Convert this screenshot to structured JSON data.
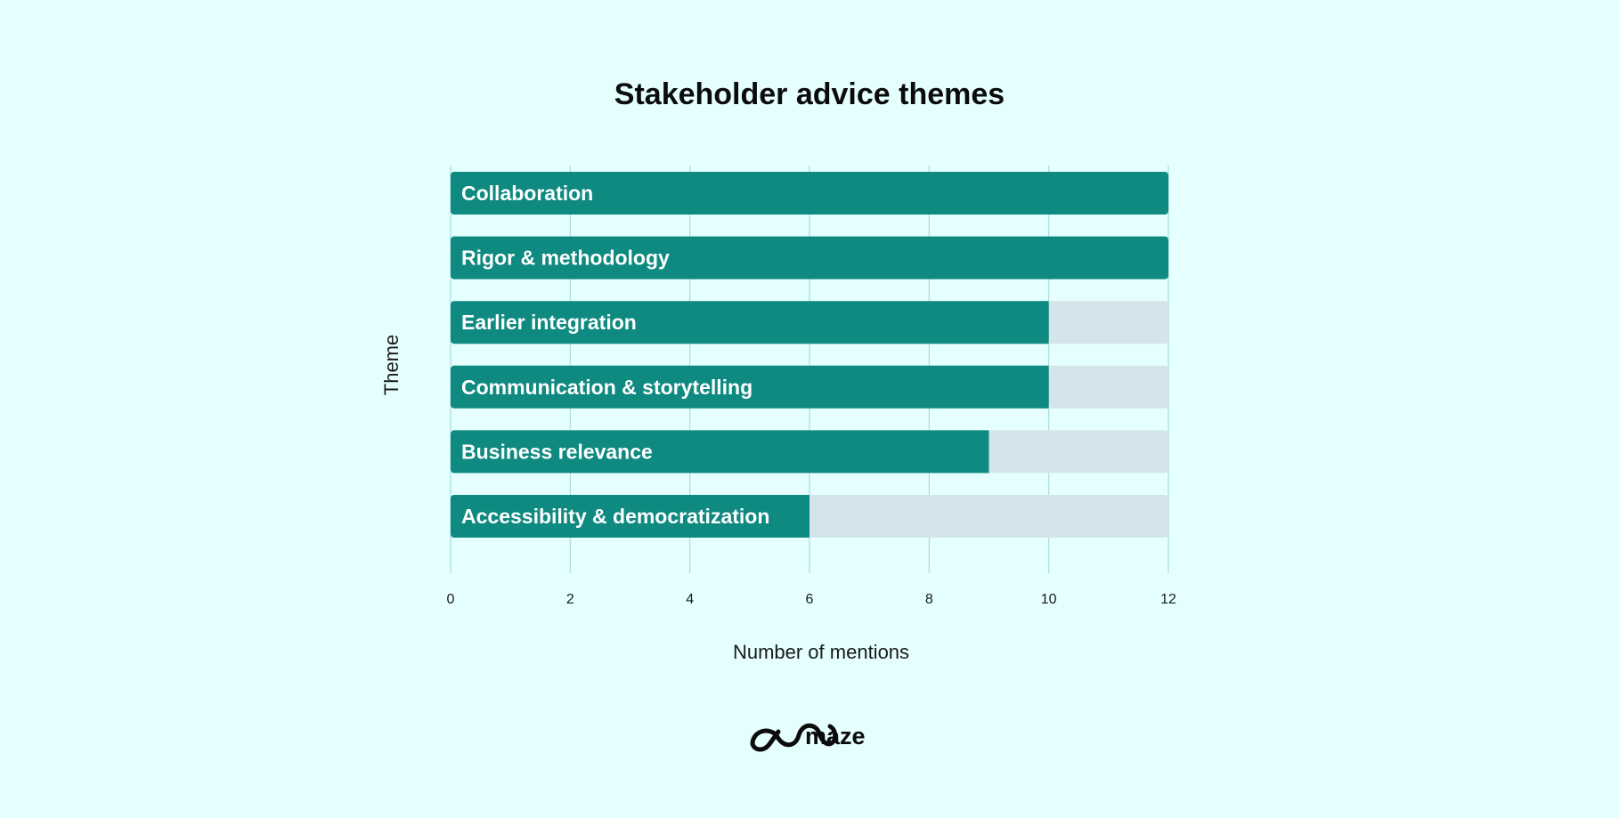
{
  "chart_data": {
    "type": "bar",
    "orientation": "horizontal",
    "title": "Stakeholder advice themes",
    "xlabel": "Number of mentions",
    "ylabel": "Theme",
    "categories": [
      "Collaboration",
      "Rigor & methodology",
      "Earlier integration",
      "Communication & storytelling",
      "Business relevance",
      "Accessibility & democratization"
    ],
    "values": [
      12,
      12,
      10,
      10,
      9,
      6
    ],
    "xlim": [
      0,
      12
    ],
    "xticks": [
      "0",
      "2",
      "4",
      "6",
      "8",
      "10",
      "12"
    ],
    "grid": "vertical",
    "legend": "none",
    "colors": {
      "bar": "#0e8a80",
      "track": "#d3e5ea",
      "grid": "#a9dcdf",
      "background": "#e4fffe"
    }
  },
  "branding": {
    "logo_text": "maze",
    "logo_icon": "maze-logo-icon"
  }
}
